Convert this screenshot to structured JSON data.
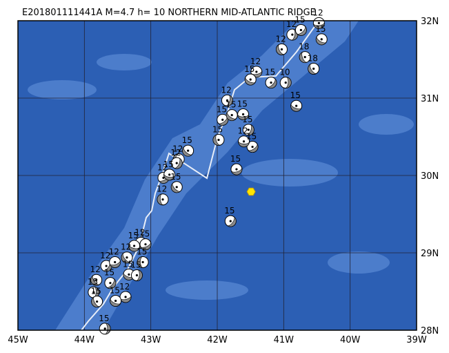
{
  "title": "E201801111441A M=4.7 h= 10 NORTHERN MID-ATLANTIC RIDGE",
  "map": {
    "xlim": [
      -45,
      -39
    ],
    "ylim": [
      28,
      32
    ],
    "xticks": [
      {
        "value": -45,
        "label": "45W"
      },
      {
        "value": -44,
        "label": "44W"
      },
      {
        "value": -43,
        "label": "43W"
      },
      {
        "value": -42,
        "label": "42W"
      },
      {
        "value": -41,
        "label": "41W"
      },
      {
        "value": -40,
        "label": "40W"
      },
      {
        "value": -39,
        "label": "39W"
      }
    ],
    "yticks": [
      {
        "value": 28,
        "label": "28N"
      },
      {
        "value": 29,
        "label": "29N"
      },
      {
        "value": 30,
        "label": "30N"
      },
      {
        "value": 31,
        "label": "31N"
      },
      {
        "value": 32,
        "label": "32N"
      }
    ],
    "epicenter": {
      "lon": -41.49,
      "lat": 29.79
    },
    "events": [
      {
        "lon": -43.69,
        "lat": 28.02,
        "depth": "15"
      },
      {
        "lon": -41.8,
        "lat": 29.41,
        "depth": "15"
      },
      {
        "lon": -41.71,
        "lat": 30.08,
        "depth": "15"
      },
      {
        "lon": -40.81,
        "lat": 30.9,
        "depth": "15"
      },
      {
        "lon": -40.55,
        "lat": 31.38,
        "depth": "18"
      },
      {
        "lon": -40.97,
        "lat": 31.2,
        "depth": "10"
      },
      {
        "lon": -41.19,
        "lat": 31.2,
        "depth": "15"
      },
      {
        "lon": -41.41,
        "lat": 31.34,
        "depth": "12"
      },
      {
        "lon": -41.5,
        "lat": 31.24,
        "depth": "15"
      },
      {
        "lon": -41.03,
        "lat": 31.63,
        "depth": "12"
      },
      {
        "lon": -40.87,
        "lat": 31.82,
        "depth": "12"
      },
      {
        "lon": -40.74,
        "lat": 31.88,
        "depth": "15"
      },
      {
        "lon": -40.47,
        "lat": 31.97,
        "depth": "12"
      },
      {
        "lon": -40.43,
        "lat": 31.76,
        "depth": "15"
      },
      {
        "lon": -40.68,
        "lat": 31.53,
        "depth": "18"
      },
      {
        "lon": -41.85,
        "lat": 30.97,
        "depth": "12"
      },
      {
        "lon": -41.92,
        "lat": 30.72,
        "depth": "15"
      },
      {
        "lon": -41.61,
        "lat": 30.79,
        "depth": "15"
      },
      {
        "lon": -41.78,
        "lat": 30.78,
        "depth": "15"
      },
      {
        "lon": -41.98,
        "lat": 30.46,
        "depth": "15"
      },
      {
        "lon": -41.53,
        "lat": 30.59,
        "depth": "15"
      },
      {
        "lon": -41.47,
        "lat": 30.37,
        "depth": "15"
      },
      {
        "lon": -41.6,
        "lat": 30.44,
        "depth": "12"
      },
      {
        "lon": -42.44,
        "lat": 30.32,
        "depth": "15"
      },
      {
        "lon": -42.58,
        "lat": 30.21,
        "depth": "12"
      },
      {
        "lon": -42.61,
        "lat": 30.16,
        "depth": "12"
      },
      {
        "lon": -42.81,
        "lat": 29.97,
        "depth": "12"
      },
      {
        "lon": -42.72,
        "lat": 30.01,
        "depth": "15"
      },
      {
        "lon": -42.61,
        "lat": 29.85,
        "depth": "15"
      },
      {
        "lon": -42.82,
        "lat": 29.69,
        "depth": "12"
      },
      {
        "lon": -43.15,
        "lat": 29.13,
        "depth": "12"
      },
      {
        "lon": -43.08,
        "lat": 29.11,
        "depth": "15"
      },
      {
        "lon": -43.25,
        "lat": 29.09,
        "depth": "15"
      },
      {
        "lon": -43.36,
        "lat": 28.94,
        "depth": "12"
      },
      {
        "lon": -43.12,
        "lat": 28.88,
        "depth": "15"
      },
      {
        "lon": -43.67,
        "lat": 28.83,
        "depth": "12"
      },
      {
        "lon": -43.54,
        "lat": 28.88,
        "depth": "12"
      },
      {
        "lon": -43.33,
        "lat": 28.72,
        "depth": "15"
      },
      {
        "lon": -43.82,
        "lat": 28.65,
        "depth": "12"
      },
      {
        "lon": -43.86,
        "lat": 28.49,
        "depth": "15"
      },
      {
        "lon": -43.61,
        "lat": 28.61,
        "depth": "15"
      },
      {
        "lon": -43.38,
        "lat": 28.43,
        "depth": "12"
      },
      {
        "lon": -43.53,
        "lat": 28.38,
        "depth": "15"
      },
      {
        "lon": -43.81,
        "lat": 28.37,
        "depth": "15"
      },
      {
        "lon": -43.21,
        "lat": 28.71,
        "depth": "15"
      }
    ]
  }
}
